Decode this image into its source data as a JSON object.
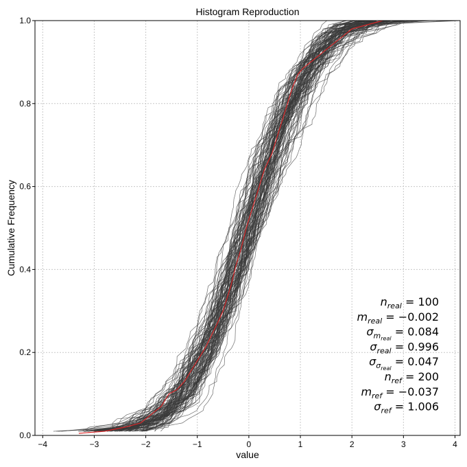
{
  "chart_data": {
    "type": "line",
    "title": "Histogram Reproduction",
    "xlabel": "value",
    "ylabel": "Cumulative Frequency",
    "xlim": [
      -4.15,
      4.1
    ],
    "ylim": [
      0.0,
      1.0
    ],
    "x_ticks": [
      -4,
      -3,
      -2,
      -1,
      0,
      1,
      2,
      3,
      4
    ],
    "x_tick_labels": [
      "−4",
      "−3",
      "−2",
      "−1",
      "0",
      "1",
      "2",
      "3",
      "4"
    ],
    "y_ticks": [
      0.0,
      0.2,
      0.4,
      0.6,
      0.8,
      1.0
    ],
    "y_tick_labels": [
      "0.0",
      "0.2",
      "0.4",
      "0.6",
      "0.8",
      "1.0"
    ],
    "grid": true,
    "colors": {
      "realizations": "#3a3a3a",
      "reference": "#d62728",
      "grid": "#c8c8c8"
    },
    "series": [
      {
        "role": "reference",
        "x": [
          -3.3,
          -2.8,
          -2.4,
          -2.1,
          -1.9,
          -1.7,
          -1.55,
          -1.4,
          -1.25,
          -1.05,
          -0.85,
          -0.65,
          -0.5,
          -0.35,
          -0.25,
          -0.15,
          -0.05,
          0.05,
          0.15,
          0.3,
          0.45,
          0.55,
          0.65,
          0.75,
          0.85,
          0.95,
          1.05,
          1.2,
          1.4,
          1.6,
          1.8,
          2.0,
          2.3,
          2.6
        ],
        "y": [
          0.005,
          0.01,
          0.02,
          0.03,
          0.05,
          0.07,
          0.1,
          0.11,
          0.13,
          0.17,
          0.21,
          0.26,
          0.3,
          0.36,
          0.41,
          0.45,
          0.5,
          0.54,
          0.58,
          0.64,
          0.68,
          0.72,
          0.76,
          0.8,
          0.84,
          0.87,
          0.885,
          0.9,
          0.92,
          0.94,
          0.96,
          0.98,
          0.99,
          1.0
        ]
      }
    ],
    "realizations": {
      "count": 100,
      "mean": -0.002,
      "std": 0.996
    },
    "stats": [
      {
        "sym": "n",
        "sub": "real",
        "subsub": "",
        "value": "100"
      },
      {
        "sym": "m",
        "sub": "real",
        "subsub": "",
        "value": "−0.002"
      },
      {
        "sym": "σ",
        "sub": "m",
        "subsub": "real",
        "value": "0.084"
      },
      {
        "sym": "σ",
        "sub": "real",
        "subsub": "",
        "value": "0.996"
      },
      {
        "sym": "σ",
        "sub": "σ",
        "subsub": "real",
        "value": "0.047"
      },
      {
        "sym": "n",
        "sub": "ref",
        "subsub": "",
        "value": "200"
      },
      {
        "sym": "m",
        "sub": "ref",
        "subsub": "",
        "value": "−0.037"
      },
      {
        "sym": "σ",
        "sub": "ref",
        "subsub": "",
        "value": "1.006"
      }
    ]
  }
}
